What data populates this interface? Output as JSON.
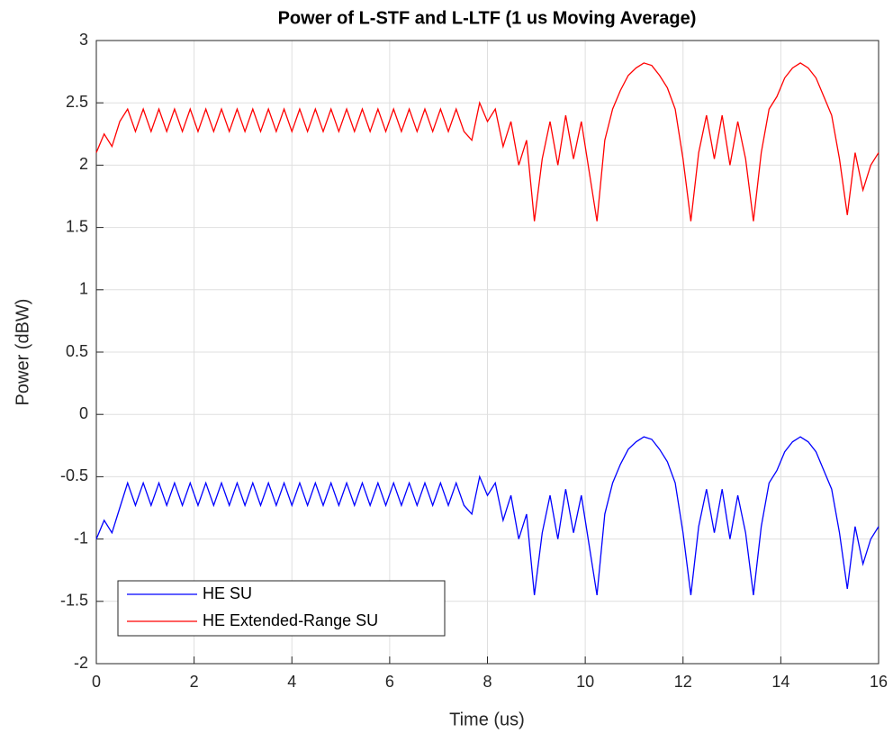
{
  "chart_data": {
    "type": "line",
    "title": "Power of L-STF and L-LTF (1 us Moving Average)",
    "x_label": "Time (us)",
    "y_label": "Power (dBW)",
    "x": [
      0,
      0.16,
      0.32,
      0.48,
      0.64,
      0.8,
      0.96,
      1.12,
      1.28,
      1.44,
      1.6,
      1.76,
      1.92,
      2.08,
      2.24,
      2.4,
      2.56,
      2.72,
      2.88,
      3.04,
      3.2,
      3.36,
      3.52,
      3.68,
      3.84,
      4,
      4.16,
      4.32,
      4.48,
      4.64,
      4.8,
      4.96,
      5.12,
      5.28,
      5.44,
      5.6,
      5.76,
      5.92,
      6.08,
      6.24,
      6.4,
      6.56,
      6.72,
      6.88,
      7.04,
      7.2,
      7.36,
      7.52,
      7.68,
      7.84,
      8,
      8.16,
      8.32,
      8.48,
      8.64,
      8.8,
      8.96,
      9.12,
      9.28,
      9.44,
      9.6,
      9.76,
      9.92,
      10.08,
      10.24,
      10.4,
      10.56,
      10.72,
      10.88,
      11.04,
      11.2,
      11.36,
      11.52,
      11.68,
      11.84,
      12,
      12.16,
      12.32,
      12.48,
      12.64,
      12.8,
      12.96,
      13.12,
      13.28,
      13.44,
      13.6,
      13.76,
      13.92,
      14.08,
      14.24,
      14.4,
      14.56,
      14.72,
      14.88,
      15.04,
      15.2,
      15.36,
      15.52,
      15.68,
      15.84,
      16
    ],
    "series": [
      {
        "name": "HE SU",
        "color": "#0000ff",
        "values": [
          -1.0,
          -0.85,
          -0.95,
          -0.75,
          -0.55,
          -0.73,
          -0.55,
          -0.73,
          -0.55,
          -0.73,
          -0.55,
          -0.73,
          -0.55,
          -0.73,
          -0.55,
          -0.73,
          -0.55,
          -0.73,
          -0.55,
          -0.73,
          -0.55,
          -0.73,
          -0.55,
          -0.73,
          -0.55,
          -0.73,
          -0.55,
          -0.73,
          -0.55,
          -0.73,
          -0.55,
          -0.73,
          -0.55,
          -0.73,
          -0.55,
          -0.73,
          -0.55,
          -0.73,
          -0.55,
          -0.73,
          -0.55,
          -0.73,
          -0.55,
          -0.73,
          -0.55,
          -0.73,
          -0.55,
          -0.73,
          -0.8,
          -0.5,
          -0.65,
          -0.55,
          -0.85,
          -0.65,
          -1.0,
          -0.8,
          -1.45,
          -0.95,
          -0.65,
          -1.0,
          -0.6,
          -0.95,
          -0.65,
          -1.05,
          -1.45,
          -0.8,
          -0.55,
          -0.4,
          -0.28,
          -0.22,
          -0.18,
          -0.2,
          -0.28,
          -0.38,
          -0.55,
          -0.95,
          -1.45,
          -0.9,
          -0.6,
          -0.95,
          -0.6,
          -1.0,
          -0.65,
          -0.95,
          -1.45,
          -0.9,
          -0.55,
          -0.45,
          -0.3,
          -0.22,
          -0.18,
          -0.22,
          -0.3,
          -0.45,
          -0.6,
          -0.95,
          -1.4,
          -0.9,
          -1.2,
          -1.0,
          -0.9
        ]
      },
      {
        "name": "HE Extended-Range SU",
        "color": "#ff0000",
        "values": [
          2.1,
          2.25,
          2.15,
          2.35,
          2.45,
          2.27,
          2.45,
          2.27,
          2.45,
          2.27,
          2.45,
          2.27,
          2.45,
          2.27,
          2.45,
          2.27,
          2.45,
          2.27,
          2.45,
          2.27,
          2.45,
          2.27,
          2.45,
          2.27,
          2.45,
          2.27,
          2.45,
          2.27,
          2.45,
          2.27,
          2.45,
          2.27,
          2.45,
          2.27,
          2.45,
          2.27,
          2.45,
          2.27,
          2.45,
          2.27,
          2.45,
          2.27,
          2.45,
          2.27,
          2.45,
          2.27,
          2.45,
          2.27,
          2.2,
          2.5,
          2.35,
          2.45,
          2.15,
          2.35,
          2.0,
          2.2,
          1.55,
          2.05,
          2.35,
          2.0,
          2.4,
          2.05,
          2.35,
          1.95,
          1.55,
          2.2,
          2.45,
          2.6,
          2.72,
          2.78,
          2.82,
          2.8,
          2.72,
          2.62,
          2.45,
          2.05,
          1.55,
          2.1,
          2.4,
          2.05,
          2.4,
          2.0,
          2.35,
          2.05,
          1.55,
          2.1,
          2.45,
          2.55,
          2.7,
          2.78,
          2.82,
          2.78,
          2.7,
          2.55,
          2.4,
          2.05,
          1.6,
          2.1,
          1.8,
          2.0,
          2.1
        ]
      }
    ],
    "xlim": [
      0,
      16
    ],
    "xticks": [
      0,
      2,
      4,
      6,
      8,
      10,
      12,
      14,
      16
    ],
    "ylim": [
      -2,
      3
    ],
    "yticks": [
      -2,
      -1.5,
      -1,
      -0.5,
      0,
      0.5,
      1,
      1.5,
      2,
      2.5,
      3
    ],
    "grid": true,
    "legend_position": "southwest"
  }
}
